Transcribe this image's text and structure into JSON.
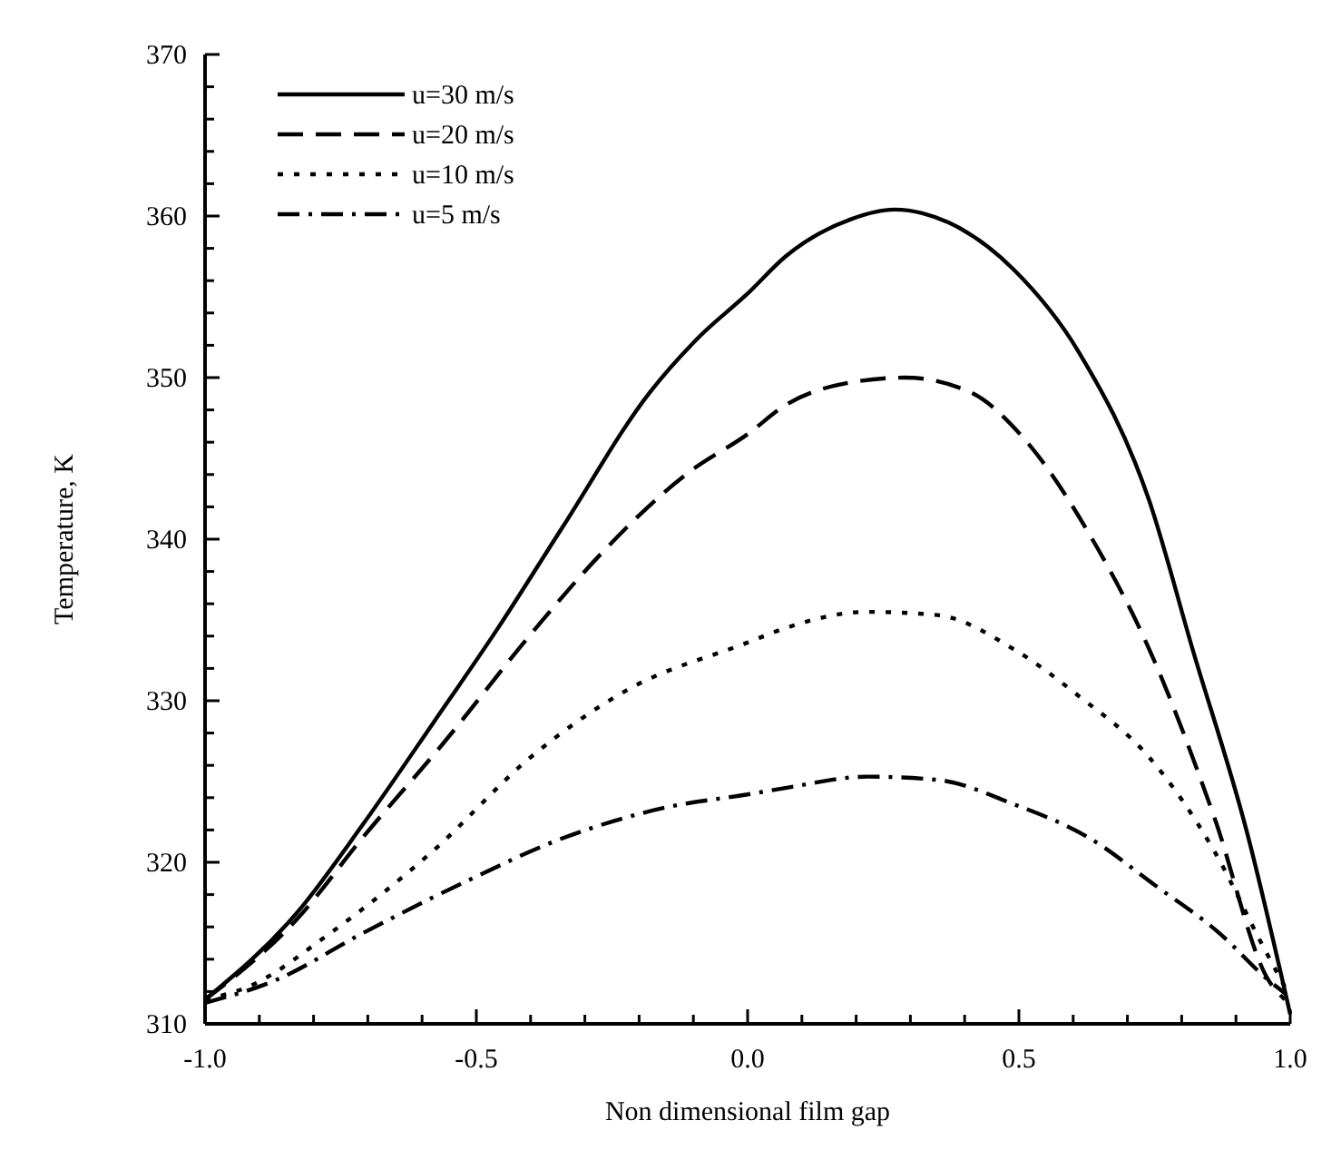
{
  "chart_data": {
    "type": "line",
    "xlabel": "Non dimensional film gap",
    "ylabel": "Temperature, K",
    "xlim": [
      -1,
      1
    ],
    "ylim": [
      310,
      370
    ],
    "xticks": [
      {
        "value": -1,
        "label": "-1.0"
      },
      {
        "value": -0.9,
        "label": null
      },
      {
        "value": -0.8,
        "label": null
      },
      {
        "value": -0.7,
        "label": null
      },
      {
        "value": -0.6,
        "label": null
      },
      {
        "value": -0.5,
        "label": "-0.5"
      },
      {
        "value": -0.4,
        "label": null
      },
      {
        "value": -0.3,
        "label": null
      },
      {
        "value": -0.2,
        "label": null
      },
      {
        "value": -0.1,
        "label": null
      },
      {
        "value": 0,
        "label": "0.0"
      },
      {
        "value": 0.1,
        "label": null
      },
      {
        "value": 0.2,
        "label": null
      },
      {
        "value": 0.3,
        "label": null
      },
      {
        "value": 0.4,
        "label": null
      },
      {
        "value": 0.5,
        "label": "0.5"
      },
      {
        "value": 0.6,
        "label": null
      },
      {
        "value": 0.7,
        "label": null
      },
      {
        "value": 0.8,
        "label": null
      },
      {
        "value": 0.9,
        "label": null
      },
      {
        "value": 1,
        "label": "1.0"
      }
    ],
    "yticks": [
      310,
      {
        "value": 312,
        "label": null
      },
      {
        "value": 314,
        "label": null
      },
      {
        "value": 316,
        "label": null
      },
      {
        "value": 318,
        "label": null
      },
      320,
      {
        "value": 322,
        "label": null
      },
      {
        "value": 324,
        "label": null
      },
      {
        "value": 326,
        "label": null
      },
      {
        "value": 328,
        "label": null
      },
      330,
      {
        "value": 332,
        "label": null
      },
      {
        "value": 334,
        "label": null
      },
      {
        "value": 336,
        "label": null
      },
      {
        "value": 338,
        "label": null
      },
      340,
      {
        "value": 342,
        "label": null
      },
      {
        "value": 344,
        "label": null
      },
      {
        "value": 346,
        "label": null
      },
      {
        "value": 348,
        "label": null
      },
      350,
      {
        "value": 352,
        "label": null
      },
      {
        "value": 354,
        "label": null
      },
      {
        "value": 356,
        "label": null
      },
      {
        "value": 358,
        "label": null
      },
      360,
      {
        "value": 362,
        "label": null
      },
      {
        "value": 364,
        "label": null
      },
      {
        "value": 366,
        "label": null
      },
      {
        "value": 368,
        "label": null
      },
      370
    ],
    "grid": false,
    "legend": "top left",
    "marker": "none",
    "series": [
      {
        "name": "u=30 m/s",
        "color": "#000000",
        "line_style": "solid",
        "x": [
          -1,
          -0.83,
          -0.71,
          -0.58,
          -0.46,
          -0.34,
          -0.18,
          -0.09,
          0,
          0.07,
          0.19,
          0.27,
          0.37,
          0.49,
          0.61,
          0.74,
          0.82,
          0.92,
          1
        ],
        "values": [
          311.5,
          316.9,
          322.3,
          328.6,
          334.5,
          340.8,
          349.1,
          352.5,
          355.2,
          357.5,
          359.8,
          360.4,
          359.6,
          356.7,
          351.6,
          342.4,
          333.2,
          321.9,
          310.6
        ]
      },
      {
        "name": "u=20 m/s",
        "color": "#000000",
        "line_style": "dashed",
        "x": [
          -1,
          -0.83,
          -0.71,
          -0.56,
          -0.4,
          -0.27,
          -0.11,
          0,
          0.07,
          0.19,
          0.29,
          0.41,
          0.51,
          0.63,
          0.74,
          0.86,
          0.96,
          0.99
        ],
        "values": [
          311.5,
          316.5,
          321.5,
          327.4,
          334.1,
          339.1,
          344.1,
          346.5,
          348.3,
          349.7,
          350,
          349.1,
          346.2,
          340.3,
          333.2,
          322.8,
          312.7,
          311.5
        ]
      },
      {
        "name": "u=10 m/s",
        "color": "#000000",
        "line_style": "dotted",
        "x": [
          -1,
          -0.92,
          -0.77,
          -0.58,
          -0.4,
          -0.22,
          0,
          0.07,
          0.22,
          0.35,
          0.49,
          0.61,
          0.74,
          0.86,
          0.95,
          0.99
        ],
        "values": [
          311.5,
          312.3,
          315.6,
          320.7,
          326.5,
          330.7,
          333.6,
          334.5,
          335.5,
          335.3,
          333.2,
          330.3,
          326.5,
          320.7,
          314.8,
          312.3
        ]
      },
      {
        "name": "u=5 m/s",
        "color": "#000000",
        "line_style": "dashdot",
        "x": [
          -1,
          -0.87,
          -0.71,
          -0.52,
          -0.34,
          -0.15,
          0,
          0.07,
          0.22,
          0.35,
          0.49,
          0.63,
          0.75,
          0.87,
          0.96,
          0.99
        ],
        "values": [
          311.3,
          312.7,
          315.6,
          318.8,
          321.5,
          323.4,
          324.2,
          324.6,
          325.3,
          325.1,
          323.6,
          321.5,
          318.6,
          315.6,
          312.7,
          311.9
        ]
      }
    ]
  }
}
